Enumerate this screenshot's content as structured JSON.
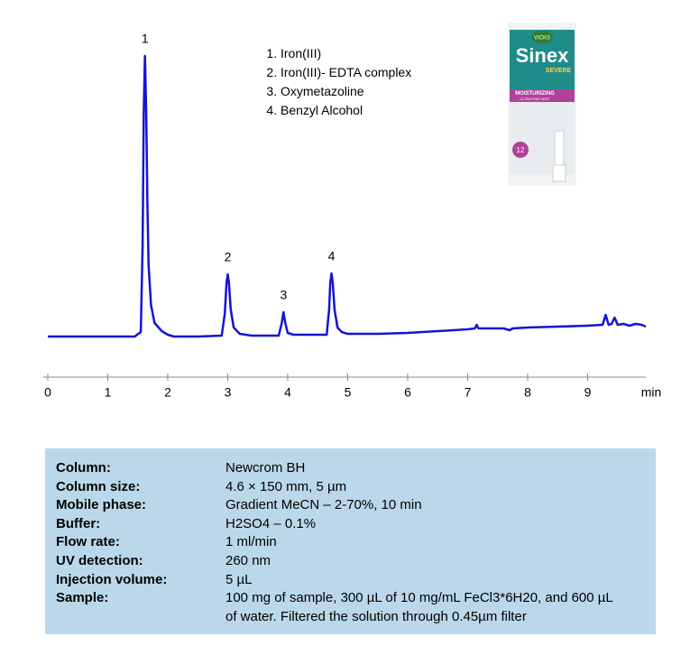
{
  "chart_data": {
    "type": "line",
    "x": [
      0,
      0.5,
      1.0,
      1.45,
      1.55,
      1.58,
      1.6,
      1.62,
      1.64,
      1.66,
      1.68,
      1.72,
      1.78,
      1.9,
      2.0,
      2.1,
      2.5,
      2.9,
      2.95,
      2.98,
      3.0,
      3.02,
      3.05,
      3.1,
      3.2,
      3.4,
      3.85,
      3.9,
      3.93,
      3.96,
      4.0,
      4.1,
      4.65,
      4.69,
      4.71,
      4.73,
      4.75,
      4.78,
      4.83,
      4.9,
      5.0,
      5.5,
      6.0,
      6.5,
      7.0,
      7.12,
      7.15,
      7.18,
      7.6,
      7.7,
      7.75,
      8.0,
      8.5,
      9.0,
      9.25,
      9.3,
      9.35,
      9.4,
      9.45,
      9.5,
      9.6,
      9.7,
      9.8,
      9.9,
      9.97
    ],
    "values": [
      0,
      0,
      0,
      0,
      5,
      100,
      250,
      311,
      250,
      150,
      80,
      35,
      15,
      6,
      2,
      0,
      0,
      1,
      25,
      60,
      69,
      60,
      30,
      10,
      3,
      1,
      1,
      15,
      27,
      15,
      4,
      2,
      2,
      30,
      60,
      70,
      60,
      30,
      10,
      5,
      3,
      3,
      4,
      6,
      8,
      9,
      13,
      9,
      9,
      7,
      9,
      10,
      11,
      12,
      13,
      24,
      13,
      14,
      21,
      13,
      14,
      12,
      14,
      13,
      11
    ],
    "color": "#1414d2",
    "xlim": [
      0,
      10
    ],
    "ylim": [
      -45,
      320
    ],
    "xticks": [
      0,
      1,
      2,
      3,
      4,
      5,
      6,
      7,
      8,
      9
    ],
    "xlabel": "min",
    "annotations": [
      {
        "text": "1",
        "x": 1.62,
        "y": 311
      },
      {
        "text": "2",
        "x": 3.0,
        "y": 69
      },
      {
        "text": "3",
        "x": 3.93,
        "y": 27
      },
      {
        "text": "4",
        "x": 4.73,
        "y": 70
      }
    ],
    "peak_names": [
      "Iron(III)",
      "Iron(III)- EDTA  complex",
      "Oxymetazoline",
      "Benzyl Alcohol"
    ]
  },
  "product_image": {
    "brand": "VICKS",
    "name": "Sinex",
    "variant": "SEVERE",
    "band": "MOISTURIZING",
    "band_sub": "ULTRA FINE MIST",
    "badge": "12"
  },
  "table": {
    "rows": [
      [
        "Column:",
        "Newcrom BH"
      ],
      [
        "Column size:",
        "4.6 × 150 mm, 5 µm"
      ],
      [
        "Mobile phase:",
        "Gradient MeCN – 2-70%, 10 min"
      ],
      [
        "Buffer:",
        "H2SO4 – 0.1%"
      ],
      [
        "Flow rate:",
        "1 ml/min"
      ],
      [
        "UV detection:",
        "260 nm"
      ],
      [
        "Injection volume:",
        "5 µL"
      ],
      [
        "Sample:",
        "100 mg of sample, 300 µL of 10 mg/mL FeCl3*6H20,  and 600 µL of water. Filtered the solution through 0.45µm filter"
      ]
    ]
  }
}
